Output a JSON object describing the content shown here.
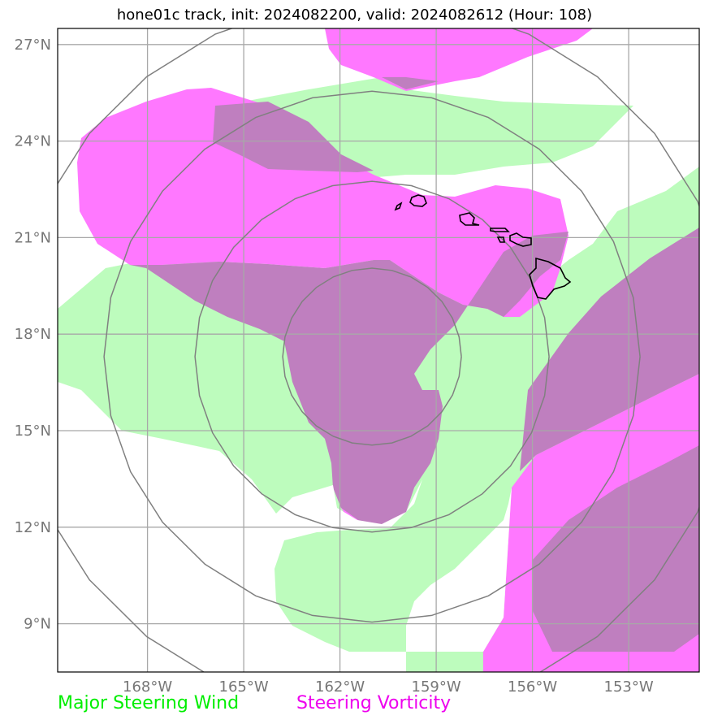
{
  "title": "hone01c track, init: 2024082200, valid: 2024082612 (Hour: 108)",
  "axes": {
    "lat_ticks": [
      "9°N",
      "12°N",
      "15°N",
      "18°N",
      "21°N",
      "24°N",
      "27°N"
    ],
    "lon_ticks": [
      "168°W",
      "165°W",
      "162°W",
      "159°W",
      "156°W",
      "153°W"
    ],
    "lon_range": [
      -170.8,
      -150.8
    ],
    "lat_range": [
      7.5,
      27.5
    ],
    "grid": true
  },
  "legend": [
    {
      "label": "Major Steering Wind",
      "color": "#00ee00"
    },
    {
      "label": "Steering Vorticity",
      "color": "#ee00ee"
    }
  ],
  "colors": {
    "wind_fill": "#bdfcbd",
    "vorticity_fill": "#ff78ff",
    "overlap_fill": "#bf7fbf",
    "grid": "#a8a8a8",
    "range_rings": "#808080",
    "coastline": "#000000"
  },
  "range_rings_center": {
    "lon": -161.0,
    "lat": 17.3
  },
  "range_rings_count": 4
}
